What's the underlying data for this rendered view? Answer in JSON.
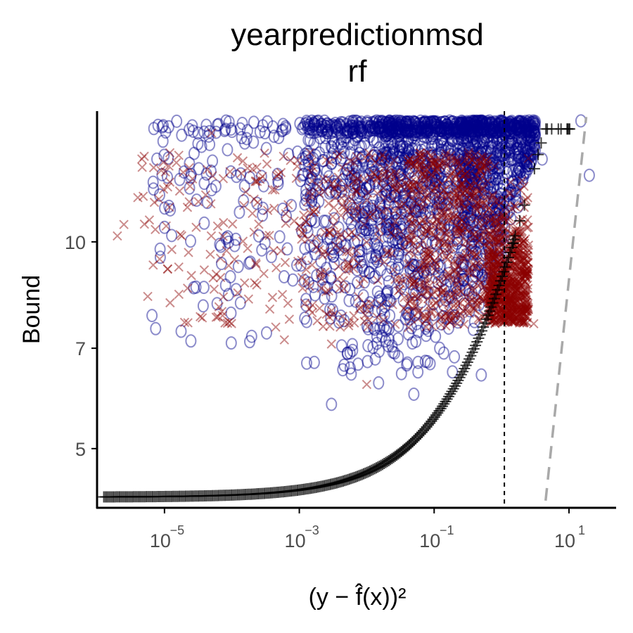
{
  "chart_data": {
    "type": "scatter",
    "title": "yearpredictionmsd",
    "subtitle": "rf",
    "xlabel": "(y − f̂(x))²",
    "ylabel": "Bound",
    "x_scale": "log10",
    "y_scale": "log",
    "xlim": [
      1e-06,
      50
    ],
    "ylim": [
      4.1,
      15.5
    ],
    "x_ticks": [
      {
        "label": "10",
        "exp": "−5",
        "value": 1e-05
      },
      {
        "label": "10",
        "exp": "−3",
        "value": 0.001
      },
      {
        "label": "10",
        "exp": "−1",
        "value": 0.1
      },
      {
        "label": "10",
        "exp": "1",
        "value": 10
      }
    ],
    "y_ticks": [
      {
        "label": "5",
        "value": 5
      },
      {
        "label": "7",
        "value": 7
      },
      {
        "label": "10",
        "value": 10
      }
    ],
    "grid": false,
    "legend": "none",
    "colors": {
      "circle": "#00008B",
      "cross": "#8B0000",
      "plus": "#000000",
      "dashed_line": "#A9A9A9",
      "vline": "#000000"
    },
    "series": [
      {
        "marker": "o",
        "color": "#00008B",
        "alpha": 0.45,
        "description_points": 2200
      },
      {
        "marker": "x",
        "color": "#8B0000",
        "alpha": 0.45,
        "description_points": 1600
      },
      {
        "marker": "+",
        "color": "#000000",
        "alpha": 0.8,
        "curve": "bound"
      }
    ],
    "reference_lines": [
      {
        "type": "vertical",
        "x": 1.1,
        "style": "dotted"
      },
      {
        "type": "dashed",
        "points": [
          [
            4.5,
            4.2
          ],
          [
            18,
            15.2
          ]
        ]
      }
    ],
    "sample_points": {
      "circles": [
        [
          1e-05,
          10.5
        ],
        [
          1.8e-05,
          14.3
        ],
        [
          3e-05,
          11.5
        ],
        [
          7e-05,
          9.3
        ],
        [
          0.00025,
          10.2
        ],
        [
          0.0008,
          8.8
        ],
        [
          0.003,
          13.0
        ],
        [
          0.003,
          5.8
        ],
        [
          0.02,
          7.5
        ],
        [
          0.05,
          6.0
        ],
        [
          0.2,
          6.8
        ],
        [
          0.5,
          6.4
        ],
        [
          0.1,
          12.0
        ],
        [
          1.0,
          15.0
        ],
        [
          4,
          13.2
        ],
        [
          15,
          15.0
        ],
        [
          20,
          12.5
        ]
      ],
      "crosses": [
        [
          2e-06,
          10.2
        ],
        [
          2.5e-06,
          10.6
        ],
        [
          1.8e-05,
          10.2
        ],
        [
          5e-05,
          14.4
        ],
        [
          0.00015,
          11.3
        ],
        [
          0.0004,
          8.3
        ],
        [
          0.0006,
          7.2
        ],
        [
          0.003,
          7.1
        ],
        [
          0.01,
          6.2
        ],
        [
          0.3,
          9.5
        ],
        [
          1.5,
          8.0
        ],
        [
          3,
          7.6
        ],
        [
          2.5,
          10.5
        ]
      ]
    }
  }
}
